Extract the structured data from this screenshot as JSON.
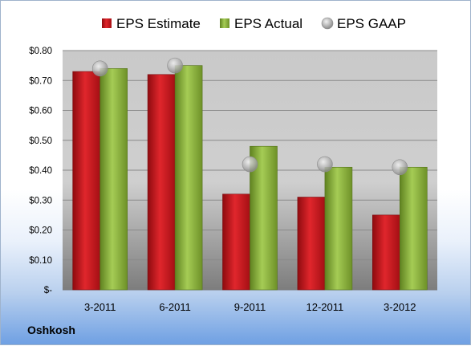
{
  "company_label": "Oshkosh",
  "colors": {
    "estimate": "#c8151b",
    "actual": "#8cb33a",
    "gaap": "#a8a8a8"
  },
  "chart_data": {
    "type": "bar",
    "categories": [
      "3-2011",
      "6-2011",
      "9-2011",
      "12-2011",
      "3-2012"
    ],
    "series": [
      {
        "name": "EPS Estimate",
        "values": [
          0.73,
          0.72,
          0.32,
          0.31,
          0.25
        ]
      },
      {
        "name": "EPS Actual",
        "values": [
          0.74,
          0.75,
          0.48,
          0.41,
          0.41
        ]
      },
      {
        "name": "EPS GAAP",
        "values": [
          0.74,
          0.75,
          0.42,
          0.42,
          0.41
        ],
        "marker": "circle"
      }
    ],
    "ylim": [
      0,
      0.8
    ],
    "yticks": [
      {
        "value": 0.8,
        "label": "$0.80"
      },
      {
        "value": 0.7,
        "label": "$0.70"
      },
      {
        "value": 0.6,
        "label": "$0.60"
      },
      {
        "value": 0.5,
        "label": "$0.50"
      },
      {
        "value": 0.4,
        "label": "$0.40"
      },
      {
        "value": 0.3,
        "label": "$0.30"
      },
      {
        "value": 0.2,
        "label": "$0.20"
      },
      {
        "value": 0.1,
        "label": "$0.10"
      },
      {
        "value": 0,
        "label": "$-"
      }
    ],
    "grid": true,
    "legend_position": "top"
  }
}
